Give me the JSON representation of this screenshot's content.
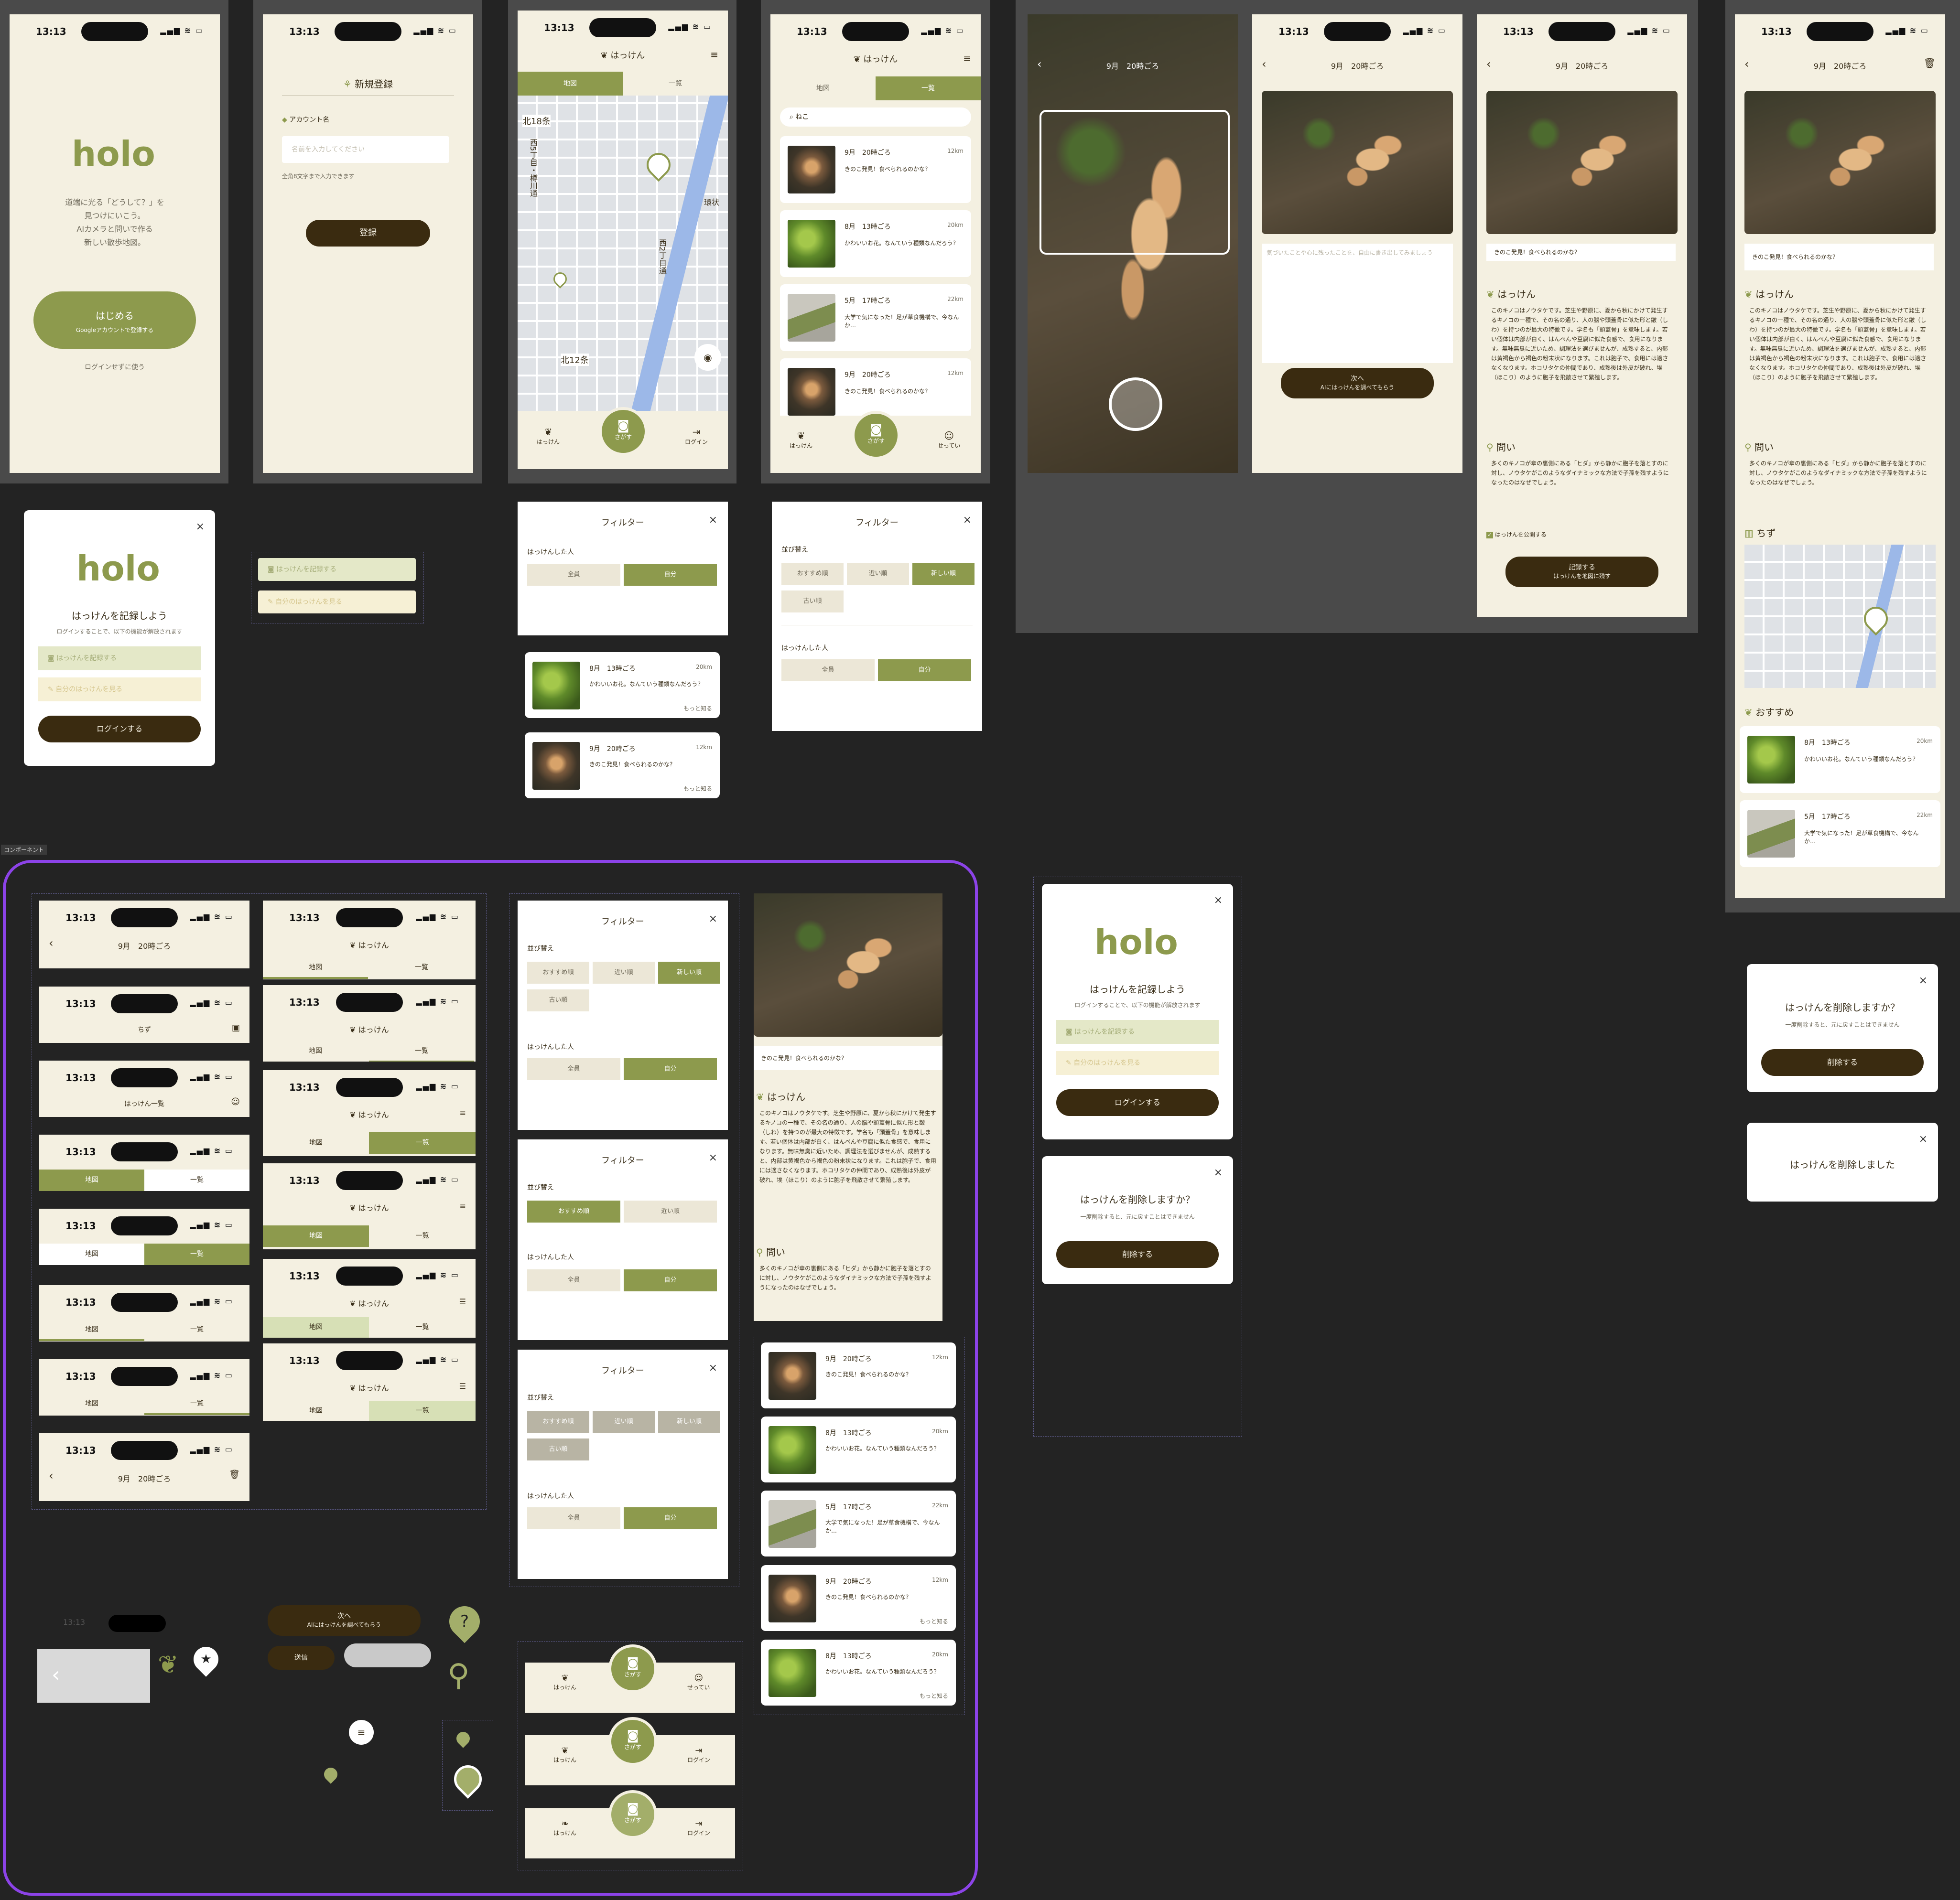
{
  "app": {
    "logo": "holo",
    "status_time": "13:13",
    "tagline": "道端に光る「どうして？」を\n見つけにいこう。\nAIカメラと問いで作る\n新しい散歩地図。",
    "start_label": "はじめる",
    "start_sub": "Googleアカウントで登録する",
    "use_without_login": "ログインせずに使う",
    "title": "はっけん",
    "component_tag": "コンポーネント"
  },
  "register": {
    "title": "新規登録",
    "account_label": "アカウント名",
    "placeholder": "名前を入力してください",
    "hint": "全角8文字まで入力できます",
    "submit": "登録"
  },
  "tabs": {
    "map": "地図",
    "list": "一覧"
  },
  "search": {
    "value": "ねこ"
  },
  "nav": {
    "hakken": "はっけん",
    "camera": "さがす",
    "login": "ログイン",
    "settings": "せってい"
  },
  "map_labels": [
    "北18条",
    "西5丁目・樽川通",
    "北12条",
    "西2丁目通",
    "環状",
    "北13"
  ],
  "entries": [
    {
      "date": "9月　20時ごろ",
      "icon": "moon",
      "dist": "12km",
      "text": "きのこ発見！食べられるのかな？",
      "thumb": "mushroom"
    },
    {
      "date": "8月　13時ごろ",
      "icon": "sun",
      "dist": "20km",
      "text": "かわいいお花。なんていう種類なんだろう？",
      "thumb": "green"
    },
    {
      "date": "5月　17時ごろ",
      "icon": "sun",
      "dist": "22km",
      "text": "大学で気になった！足が草食機構で、今なんか…",
      "thumb": "road"
    },
    {
      "date": "9月　20時ごろ",
      "icon": "moon",
      "dist": "12km",
      "text": "きのこ発見！食べられるのかな？",
      "thumb": "mushroom"
    }
  ],
  "more_label": "もっと知る",
  "login_modal": {
    "title": "はっけんを記録しよう",
    "sub": "ログインすることで、以下の機能が解放されます",
    "feature1": "はっけんを記録する",
    "feature2": "自分のはっけんを見る",
    "button": "ログインする"
  },
  "filter": {
    "title": "フィルター",
    "sort_label": "並び替え",
    "sort_options": [
      "おすすめ順",
      "近い順",
      "新しい順",
      "古い順"
    ],
    "who_label": "はっけんした人",
    "who_options": [
      "全員",
      "自分"
    ]
  },
  "detail": {
    "header_date": "9月　20時ごろ",
    "memo_placeholder": "気づいたことや心に残ったことを、自由に書き出してみましょう",
    "caption": "きのこ発見！食べられるのかな？",
    "next": "次へ",
    "next_sub": "AIにはっけんを調べてもらう",
    "hakken_heading": "はっけん",
    "hakken_body": "このキノコはノウタケです。芝生や野原に、夏から秋にかけて発生するキノコの一種で、その名の通り、人の脳や頭蓋骨に似た形と皺（しわ）を持つのが最大の特徴です。学名も「頭蓋骨」を意味します。若い個体は内部が白く、はんぺんや豆腐に似た食感で、食用になります。無味無臭に近いため、調理法を選びませんが、成熟すると、内部は黄褐色から褐色の粉末状になります。これは胞子で、食用には適さなくなります。ホコリタケの仲間であり、成熟後は外皮が破れ、埃（ほこり）のように胞子を飛散させて繁殖します。",
    "question_heading": "問い",
    "question_body": "多くのキノコが傘の裏側にある「ヒダ」から静かに胞子を落とすのに対し、ノウタケがこのようなダイナミックな方法で子孫を残すようになったのはなぜでしょう。",
    "publish": "はっけんを公開する",
    "record": "記録する",
    "record_sub": "はっけんを地図に残す",
    "map_heading": "ちず",
    "reco_heading": "おすすめ"
  },
  "delete": {
    "confirm": "はっけんを削除しますか？",
    "confirm_sub": "一度削除すると、元に戻すことはできません",
    "button": "削除する",
    "done": "はっけんを削除しました"
  },
  "components": {
    "header_map": "ちず",
    "header_list": "はっけん一覧",
    "send": "送信"
  },
  "colors": {
    "olive": "#8d9a4d",
    "cream": "#f4f0e1",
    "dark": "#3a2b10",
    "accent_purple": "#7a3ff0"
  }
}
